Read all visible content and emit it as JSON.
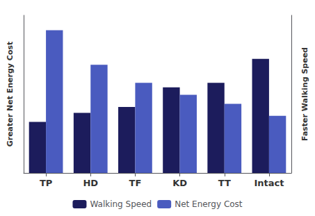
{
  "chart_data": {
    "type": "bar",
    "categories": [
      "TP",
      "HD",
      "TF",
      "KD",
      "TT",
      "Intact"
    ],
    "series": [
      {
        "name": "Walking Speed",
        "color": "#1c1c5c",
        "values": [
          0.34,
          0.4,
          0.44,
          0.57,
          0.6,
          0.76
        ]
      },
      {
        "name": "Net Energy Cost",
        "color": "#4a5bbf",
        "values": [
          0.95,
          0.72,
          0.6,
          0.52,
          0.46,
          0.38
        ]
      }
    ],
    "ylabel": "Greater Net Energy Cost",
    "y2label": "Faster Walking Speed",
    "ylim": [
      0,
      1.05
    ],
    "yticks": [],
    "y2lim": [
      0,
      1.05
    ],
    "y2ticks": [],
    "grid": false,
    "legend": "bottom",
    "tick_labels": "x"
  }
}
